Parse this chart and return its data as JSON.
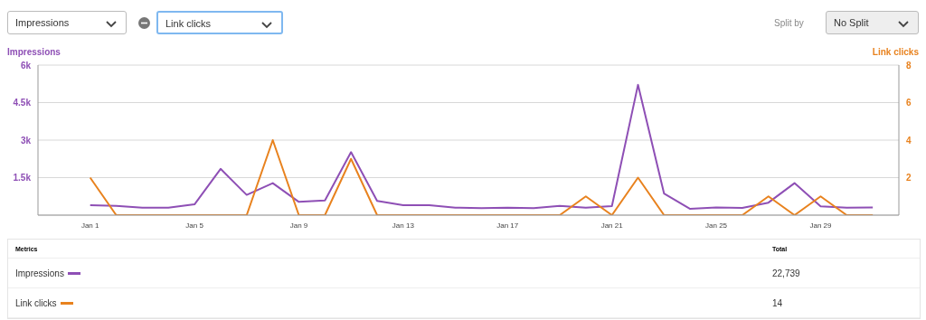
{
  "chart_data": {
    "type": "line",
    "ylabel": "Impressions",
    "y2label": "Link clicks",
    "categories": [
      "Jan 1",
      null,
      null,
      null,
      "Jan 5",
      null,
      null,
      null,
      "Jan 9",
      null,
      null,
      null,
      "Jan 13",
      null,
      null,
      null,
      "Jan 17",
      null,
      null,
      null,
      "Jan 21",
      null,
      null,
      null,
      "Jan 25",
      null,
      null,
      null,
      "Jan 29",
      null,
      null
    ],
    "series": [
      {
        "name": "Impressions",
        "color": "#8e4fb5",
        "values": [
          400,
          370,
          300,
          300,
          430,
          1850,
          810,
          1280,
          530,
          590,
          2520,
          570,
          400,
          400,
          300,
          280,
          300,
          280,
          370,
          300,
          360,
          5210,
          860,
          250,
          310,
          290,
          500,
          1280,
          350,
          300,
          310
        ]
      },
      {
        "name": "Link clicks",
        "color": "#e8821e",
        "axis": "y2",
        "values": [
          2,
          0,
          0,
          0,
          0,
          0,
          0,
          4,
          0,
          0,
          3,
          0,
          0,
          0,
          0,
          0,
          0,
          0,
          0,
          1,
          0,
          2,
          0,
          0,
          0,
          0,
          1,
          0,
          1,
          0,
          0
        ]
      }
    ],
    "ylim": [
      0,
      6000
    ],
    "yticks": [
      {
        "value": 0,
        "label": null
      },
      {
        "value": 1500,
        "label": "1.5k"
      },
      {
        "value": 3000,
        "label": "3k"
      },
      {
        "value": 4500,
        "label": "4.5k"
      },
      {
        "value": 6000,
        "label": "6k"
      }
    ],
    "y2lim": [
      0,
      8
    ],
    "y2ticks": [
      2,
      4,
      6,
      8
    ],
    "grid": "y",
    "legend": "bottom",
    "marker": "none",
    "line_style": "solid",
    "annotations": [
      "Impressions",
      "Link clicks",
      "Split by",
      "No Split",
      "Metrics",
      "Total",
      "22,739",
      "14"
    ]
  }
}
